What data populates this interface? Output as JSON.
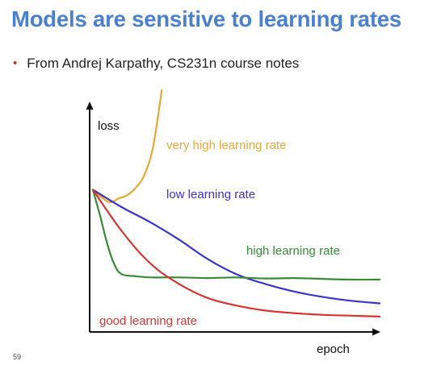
{
  "slide": {
    "title": "Models are sensitive to learning rates",
    "bullet": "From Andrej Karpathy, CS231n course notes",
    "page_number": "59"
  },
  "chart_data": {
    "type": "line",
    "xlabel": "epoch",
    "ylabel": "loss",
    "axis_ticks": false,
    "grid": false,
    "legend": "inline labels",
    "x": [
      0,
      1,
      2,
      3,
      4,
      5,
      6,
      7,
      8,
      9,
      10
    ],
    "series": [
      {
        "name": "very high learning rate",
        "color": "#e8a838",
        "x": [
          0,
          0.3,
          0.6,
          0.9,
          1.2,
          1.5,
          1.8,
          2.1,
          2.4
        ],
        "values": [
          6.2,
          5.85,
          5.62,
          5.8,
          5.95,
          6.3,
          6.9,
          8.2,
          10.8
        ]
      },
      {
        "name": "low learning rate",
        "color": "#3b34c8",
        "values": [
          6.2,
          5.4,
          4.7,
          3.9,
          3.0,
          2.3,
          1.85,
          1.5,
          1.25,
          1.07,
          0.95
        ]
      },
      {
        "name": "high learning rate",
        "color": "#3a8a3a",
        "x": [
          0,
          0.25,
          0.5,
          0.75,
          1,
          1.5,
          2,
          3,
          4,
          5,
          6,
          7,
          8,
          9,
          10
        ],
        "values": [
          6.2,
          5.0,
          3.7,
          2.75,
          2.3,
          2.2,
          2.15,
          2.15,
          2.12,
          2.15,
          2.1,
          2.12,
          2.08,
          2.05,
          2.05
        ]
      },
      {
        "name": "good learning rate",
        "color": "#d93434",
        "values": [
          6.2,
          4.3,
          2.8,
          1.85,
          1.2,
          0.85,
          0.62,
          0.5,
          0.42,
          0.38,
          0.34
        ]
      }
    ]
  }
}
